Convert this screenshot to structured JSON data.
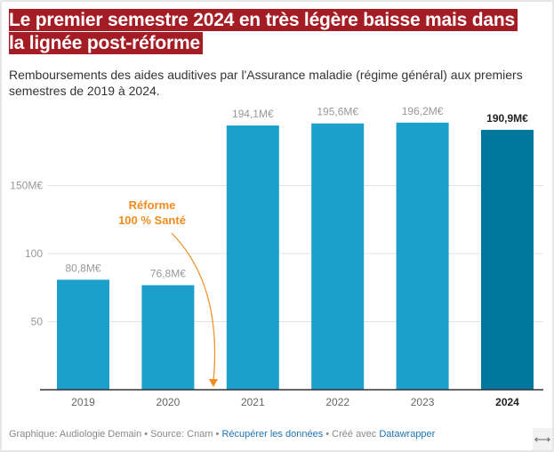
{
  "title": "Le premier semestre 2024 en très légère baisse mais dans la lignée post-réforme",
  "subtitle": "Remboursements des aides auditives par l'Assurance maladie (régime général) aux premiers semestres de 2019 à 2024.",
  "chart_data": {
    "type": "bar",
    "categories": [
      "2019",
      "2020",
      "2021",
      "2022",
      "2023",
      "2024"
    ],
    "values": [
      80.8,
      76.8,
      194.1,
      195.6,
      196.2,
      190.9
    ],
    "data_labels": [
      "80,8M€",
      "76,8M€",
      "194,1M€",
      "195,6M€",
      "196,2M€",
      "190,9M€"
    ],
    "highlight_category": "2024",
    "yticks": [
      {
        "value": 50,
        "label": "50"
      },
      {
        "value": 100,
        "label": "100"
      },
      {
        "value": 150,
        "label": "150M€"
      }
    ],
    "ylim": [
      0,
      200
    ],
    "grid": true,
    "annotation": {
      "line1": "Réforme",
      "line2": "100 % Santé",
      "points_to": "between 2020 and 2021"
    },
    "colors": {
      "bar": "#1aa0cb",
      "highlight": "#00789e",
      "annotation": "#f08c1e",
      "title_bg": "#a51d24"
    }
  },
  "footer": {
    "credit": "Graphique: Audiologie Demain • Source: Cnam • ",
    "data_link": "Récupérer les données",
    "made_with": " • Créé avec ",
    "dw_link": "Datawrapper"
  },
  "resize_icon": "horizontal-arrows-icon",
  "resize_glyph": "⟷"
}
